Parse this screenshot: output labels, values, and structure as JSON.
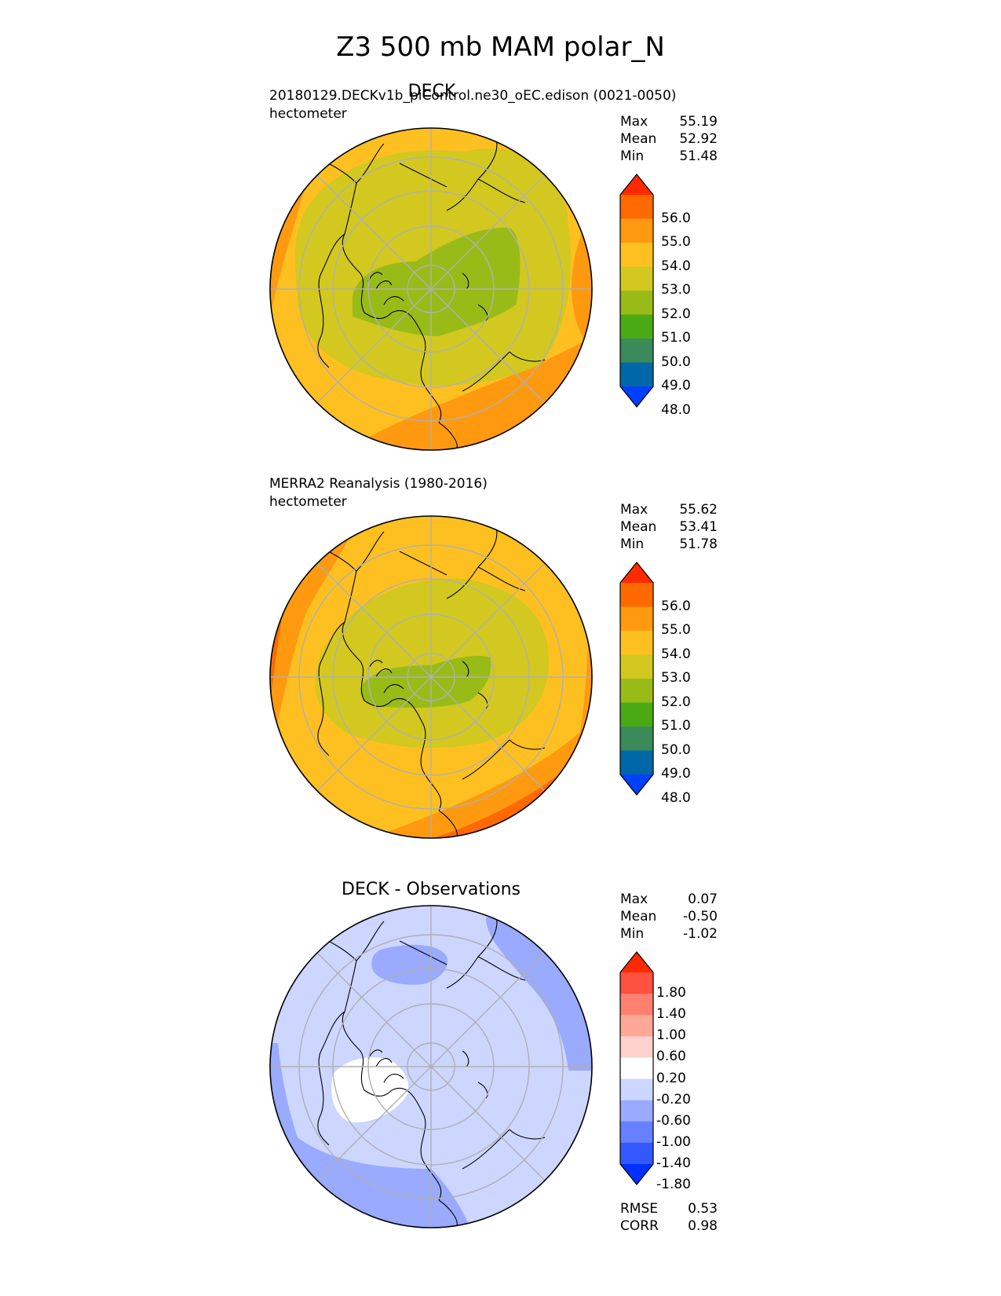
{
  "title": "Z3 500 mb MAM polar_N",
  "panels": [
    {
      "id": "test",
      "title": "DECK",
      "subtitle": "20180129.DECKv1b_piControl.ne30_oEC.edison (0021-0050)",
      "units": "hectometer",
      "stats": [
        {
          "label": "Max",
          "value": "55.19"
        },
        {
          "label": "Mean",
          "value": "52.92"
        },
        {
          "label": "Min",
          "value": "51.48"
        }
      ],
      "colorbar": {
        "ticks": [
          "56.0",
          "55.0",
          "54.0",
          "53.0",
          "52.0",
          "51.0",
          "50.0",
          "49.0",
          "48.0"
        ],
        "colors": [
          "#ff2a00",
          "#ff6a00",
          "#ff9a10",
          "#fec020",
          "#d2c820",
          "#99bb18",
          "#4aaa14",
          "#3a8a5a",
          "#0068a8",
          "#0040ff"
        ]
      }
    },
    {
      "id": "ref",
      "title": "",
      "subtitle": "MERRA2 Reanalysis (1980-2016)",
      "units": "hectometer",
      "stats": [
        {
          "label": "Max",
          "value": "55.62"
        },
        {
          "label": "Mean",
          "value": "53.41"
        },
        {
          "label": "Min",
          "value": "51.78"
        }
      ],
      "colorbar": {
        "ticks": [
          "56.0",
          "55.0",
          "54.0",
          "53.0",
          "52.0",
          "51.0",
          "50.0",
          "49.0",
          "48.0"
        ],
        "colors": [
          "#ff2a00",
          "#ff6a00",
          "#ff9a10",
          "#fec020",
          "#d2c820",
          "#99bb18",
          "#4aaa14",
          "#3a8a5a",
          "#0068a8",
          "#0040ff"
        ]
      }
    },
    {
      "id": "diff",
      "title": "DECK - Observations",
      "subtitle": "",
      "units": "",
      "stats": [
        {
          "label": "Max",
          "value": "0.07"
        },
        {
          "label": "Mean",
          "value": "-0.50"
        },
        {
          "label": "Min",
          "value": "-1.02"
        }
      ],
      "colorbar": {
        "ticks": [
          "1.80",
          "1.40",
          "1.00",
          "0.60",
          "0.20",
          "-0.20",
          "-0.60",
          "-1.00",
          "-1.40",
          "-1.80"
        ],
        "colors": [
          "#ff2a00",
          "#ff5040",
          "#ff8070",
          "#ffa898",
          "#ffd2cc",
          "#ffffff",
          "#ccd6ff",
          "#99aaff",
          "#6680ff",
          "#3358ff",
          "#0030ff"
        ]
      },
      "metrics": [
        {
          "label": "RMSE",
          "value": "0.53"
        },
        {
          "label": "CORR",
          "value": "0.98"
        }
      ]
    }
  ]
}
